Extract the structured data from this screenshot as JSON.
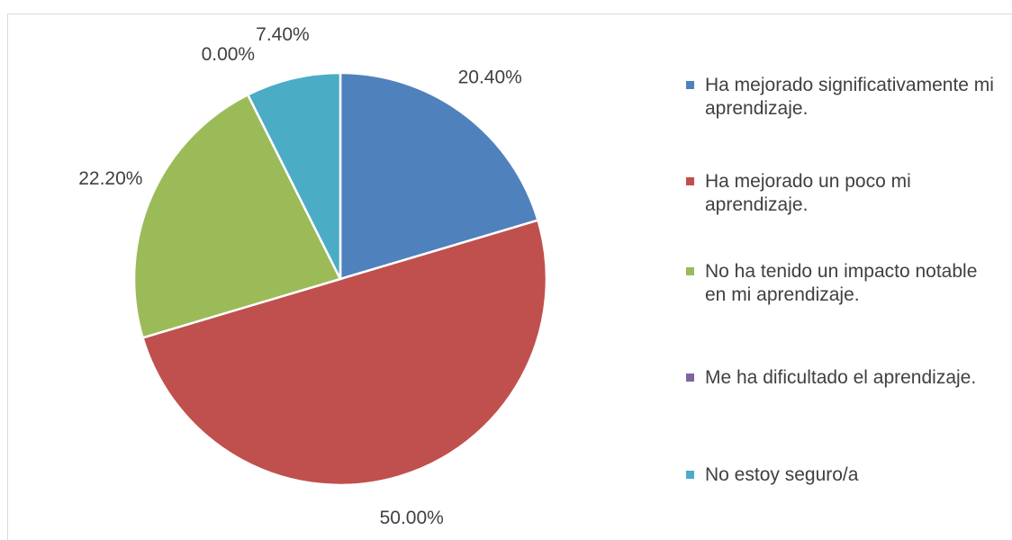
{
  "chart_data": {
    "type": "pie",
    "categories": [
      "Ha mejorado significativamente mi aprendizaje.",
      "Ha mejorado un poco mi aprendizaje.",
      "No ha tenido un impacto notable en mi aprendizaje.",
      "Me ha dificultado el aprendizaje.",
      "No estoy seguro/a"
    ],
    "values": [
      20.4,
      50,
      22.2,
      0,
      7.4
    ],
    "value_labels": [
      "20.40%",
      "50.00%",
      "22.20%",
      "0.00%",
      "7.40%"
    ],
    "colors": [
      "#4f81bd",
      "#c0504d",
      "#9bbb59",
      "#8064a2",
      "#4bacc6"
    ],
    "legend": "right"
  }
}
